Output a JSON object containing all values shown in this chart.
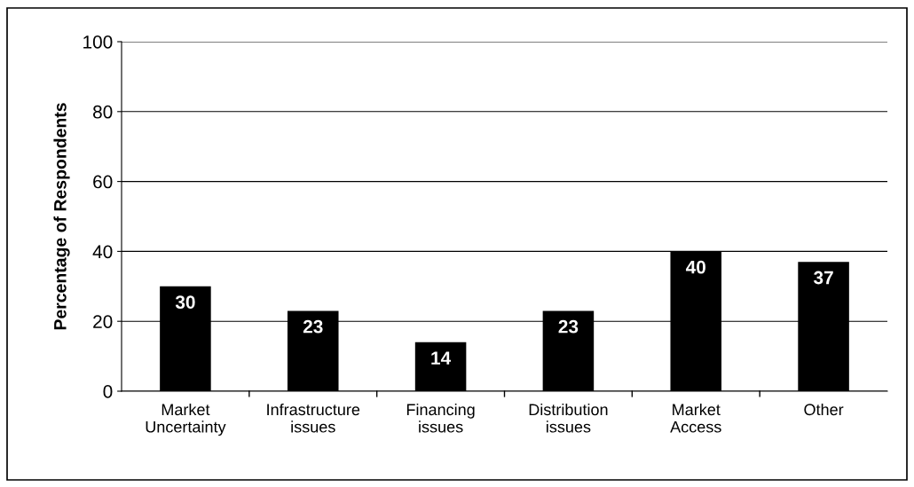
{
  "chart_data": {
    "type": "bar",
    "ylabel": "Percentage of Respondents",
    "categories": [
      "Market\nUncertainty",
      "Infrastructure\nissues",
      "Financing\nissues",
      "Distribution\nissues",
      "Market\nAccess",
      "Other"
    ],
    "values": [
      30,
      23,
      14,
      23,
      40,
      37
    ],
    "color": "#000000",
    "ylim": [
      0,
      100
    ],
    "yticks": [
      0,
      20,
      40,
      60,
      80,
      100
    ],
    "grid": "y",
    "data_labels": true
  }
}
